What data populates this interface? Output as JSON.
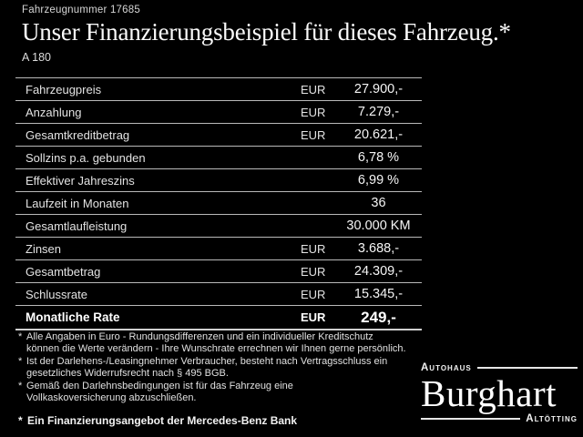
{
  "colors": {
    "background": "#000000",
    "text": "#f0f0f0",
    "separator_line": "#b9b9b9"
  },
  "header": {
    "vehicle_number": "Fahrzeugnummer 17685",
    "title": "Unser Finanzierungsbeispiel für dieses Fahrzeug.*",
    "model": "A 180"
  },
  "table": {
    "rows": [
      {
        "label": "Fahrzeugpreis",
        "currency": "EUR",
        "value": "27.900,-"
      },
      {
        "label": "Anzahlung",
        "currency": "EUR",
        "value": "7.279,-"
      },
      {
        "label": "Gesamtkreditbetrag",
        "currency": "EUR",
        "value": "20.621,-"
      },
      {
        "label": "Sollzins p.a. gebunden",
        "currency": "",
        "value": "6,78 %"
      },
      {
        "label": "Effektiver Jahreszins",
        "currency": "",
        "value": "6,99 %"
      },
      {
        "label": "Laufzeit in Monaten",
        "currency": "",
        "value": "36"
      },
      {
        "label": "Gesamtlaufleistung",
        "currency": "",
        "value": "30.000 KM"
      },
      {
        "label": "Zinsen",
        "currency": "EUR",
        "value": "3.688,-"
      },
      {
        "label": "Gesamtbetrag",
        "currency": "EUR",
        "value": "24.309,-"
      },
      {
        "label": "Schlussrate",
        "currency": "EUR",
        "value": "15.345,-"
      },
      {
        "label": "Monatliche Rate",
        "currency": "EUR",
        "value": "249,-"
      }
    ]
  },
  "footnotes": {
    "marker": "*",
    "notes": [
      {
        "lines": [
          "Alle Angaben in Euro - Rundungsdifferenzen und ein individueller Kreditschutz",
          "können die Werte verändern - Ihre Wunschrate errechnen wir Ihnen gerne persönlich."
        ]
      },
      {
        "lines": [
          "Ist der Darlehens-/Leasingnehmer Verbraucher, besteht nach Vertragsschluss ein",
          "gesetzliches Widerrufsrecht nach § 495 BGB."
        ]
      },
      {
        "lines": [
          "Gemäß den Darlehnsbedingungen ist für das Fahrzeug eine",
          "Vollkaskoversicherung abzuschließen."
        ]
      }
    ],
    "financing_offer": "Ein Finanzierungsangebot der Mercedes-Benz Bank"
  },
  "dealer_logo": {
    "top_label": "Autohaus",
    "name": "Burghart",
    "bottom_label": "Altötting"
  }
}
